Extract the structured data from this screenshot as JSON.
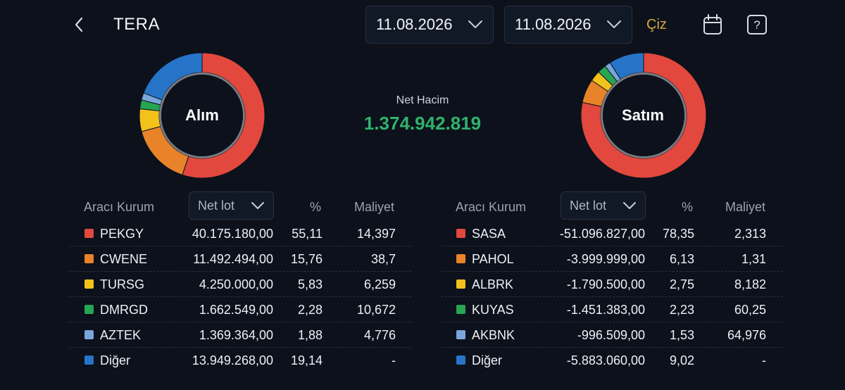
{
  "header": {
    "title": "TERA",
    "start_date": "11.08.2026",
    "end_date": "11.08.2026",
    "draw_label": "Çiz"
  },
  "icons": {
    "back": "chevron-left-icon",
    "calendar": "calendar-icon",
    "help": "help-icon"
  },
  "summary": {
    "net_label": "Net Hacim",
    "net_value": "1.374.942.819",
    "net_color": "#2fb36a"
  },
  "columns": {
    "broker": "Aracı Kurum",
    "lot_select": "Net lot",
    "percent": "%",
    "cost": "Maliyet"
  },
  "buy": {
    "label": "Alım",
    "rows": [
      {
        "name": "PEKGY",
        "lot": "40.175.180,00",
        "pct": "55,11",
        "cost": "14,397",
        "color": "#e2483d"
      },
      {
        "name": "CWENE",
        "lot": "11.492.494,00",
        "pct": "15,76",
        "cost": "38,7",
        "color": "#e8832a"
      },
      {
        "name": "TURSG",
        "lot": "4.250.000,00",
        "pct": "5,83",
        "cost": "6,259",
        "color": "#f2c21b"
      },
      {
        "name": "DMRGD",
        "lot": "1.662.549,00",
        "pct": "2,28",
        "cost": "10,672",
        "color": "#27a552"
      },
      {
        "name": "AZTEK",
        "lot": "1.369.364,00",
        "pct": "1,88",
        "cost": "4,776",
        "color": "#7aa6dc"
      },
      {
        "name": "Diğer",
        "lot": "13.949.268,00",
        "pct": "19,14",
        "cost": "-",
        "color": "#2674c8"
      }
    ],
    "shares": [
      55.11,
      15.76,
      5.83,
      2.28,
      1.88,
      19.14
    ]
  },
  "sell": {
    "label": "Satım",
    "rows": [
      {
        "name": "SASA",
        "lot": "-51.096.827,00",
        "pct": "78,35",
        "cost": "2,313",
        "color": "#e2483d"
      },
      {
        "name": "PAHOL",
        "lot": "-3.999.999,00",
        "pct": "6,13",
        "cost": "1,31",
        "color": "#e8832a"
      },
      {
        "name": "ALBRK",
        "lot": "-1.790.500,00",
        "pct": "2,75",
        "cost": "8,182",
        "color": "#f2c21b"
      },
      {
        "name": "KUYAS",
        "lot": "-1.451.383,00",
        "pct": "2,23",
        "cost": "60,25",
        "color": "#27a552"
      },
      {
        "name": "AKBNK",
        "lot": "-996.509,00",
        "pct": "1,53",
        "cost": "64,976",
        "color": "#7aa6dc"
      },
      {
        "name": "Diğer",
        "lot": "-5.883.060,00",
        "pct": "9,02",
        "cost": "-",
        "color": "#2674c8"
      }
    ],
    "shares": [
      78.35,
      6.13,
      2.75,
      2.23,
      1.53,
      9.02
    ]
  }
}
